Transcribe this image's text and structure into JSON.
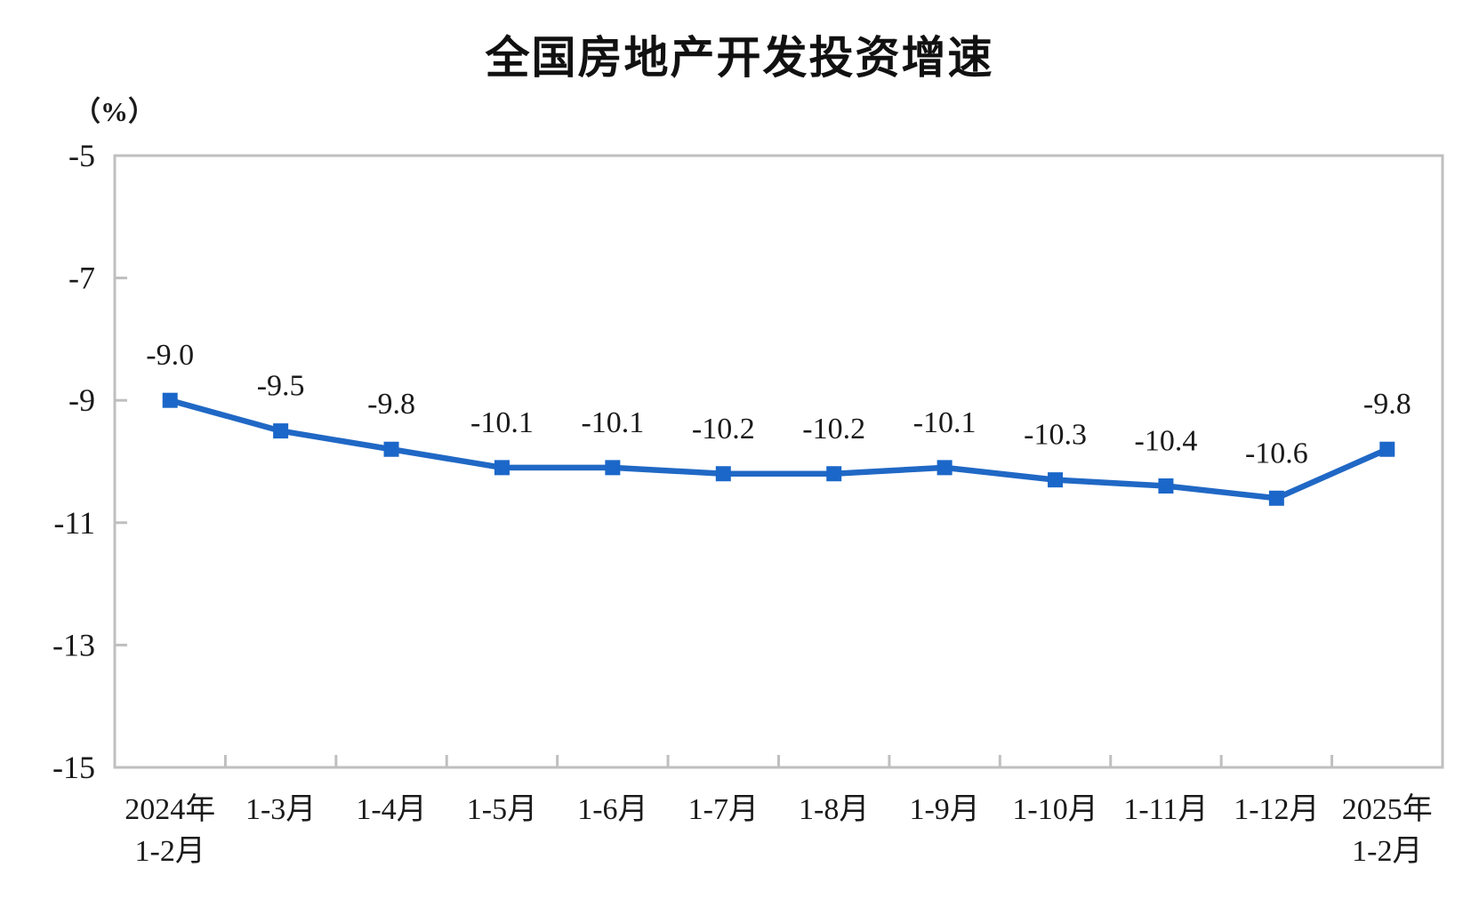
{
  "chart": {
    "title": "全国房地产开发投资增速",
    "unit_label": "（%）"
  },
  "chart_data": {
    "type": "line",
    "title": "全国房地产开发投资增速",
    "ylabel": "（%）",
    "categories": [
      "2024年1-2月",
      "1-3月",
      "1-4月",
      "1-5月",
      "1-6月",
      "1-7月",
      "1-8月",
      "1-9月",
      "1-10月",
      "1-11月",
      "1-12月",
      "2025年1-2月"
    ],
    "category_lines": [
      [
        "2024年",
        "1-2月"
      ],
      [
        "1-3月"
      ],
      [
        "1-4月"
      ],
      [
        "1-5月"
      ],
      [
        "1-6月"
      ],
      [
        "1-7月"
      ],
      [
        "1-8月"
      ],
      [
        "1-9月"
      ],
      [
        "1-10月"
      ],
      [
        "1-11月"
      ],
      [
        "1-12月"
      ],
      [
        "2025年",
        "1-2月"
      ]
    ],
    "series": [
      {
        "name": "全国房地产开发投资增速",
        "values": [
          -9.0,
          -9.5,
          -9.8,
          -10.1,
          -10.1,
          -10.2,
          -10.2,
          -10.1,
          -10.3,
          -10.4,
          -10.6,
          -9.8
        ],
        "point_labels": [
          "-9.0",
          "-9.5",
          "-9.8",
          "-10.1",
          "-10.1",
          "-10.2",
          "-10.2",
          "-10.1",
          "-10.3",
          "-10.4",
          "-10.6",
          "-9.8"
        ]
      }
    ],
    "ylim": [
      -15,
      -5
    ],
    "yticks": [
      -5,
      -7,
      -9,
      -11,
      -13,
      -15
    ],
    "ytick_labels": [
      "-5",
      "-7",
      "-9",
      "-11",
      "-13",
      "-15"
    ],
    "grid": false,
    "legend_position": "none",
    "marker": "square",
    "colors": {
      "line": "#2068C5",
      "marker": "#1B67C9",
      "axis": "#BFBFBF",
      "text": "#1A1A1A"
    }
  }
}
